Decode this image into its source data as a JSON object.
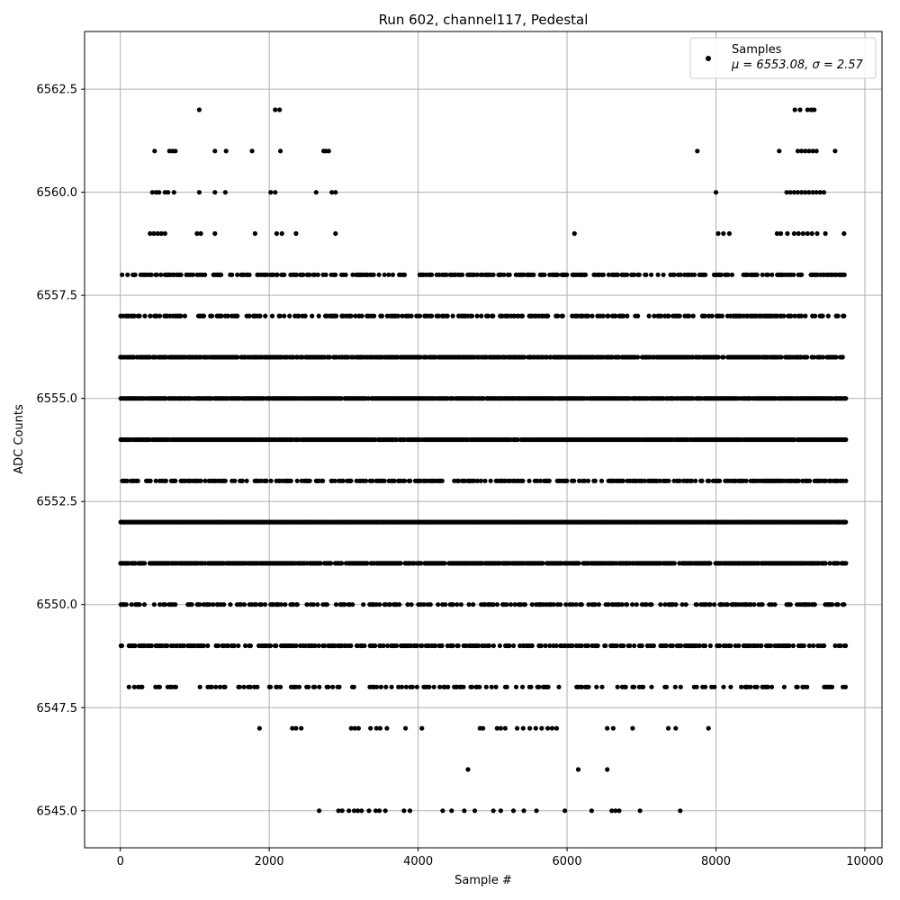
{
  "chart_data": {
    "type": "scatter",
    "title": "Run 602, channel117, Pedestal",
    "xlabel": "Sample #",
    "ylabel": "ADC Counts",
    "xlim": [
      -480,
      10230
    ],
    "ylim": [
      6544.1,
      6563.9
    ],
    "xticks": [
      0,
      2000,
      4000,
      6000,
      8000,
      10000
    ],
    "xtick_labels": [
      "0",
      "2000",
      "4000",
      "6000",
      "8000",
      "10000"
    ],
    "yticks": [
      6545.0,
      6547.5,
      6550.0,
      6552.5,
      6555.0,
      6557.5,
      6560.0,
      6562.5
    ],
    "ytick_labels": [
      "6545.0",
      "6547.5",
      "6550.0",
      "6552.5",
      "6555.0",
      "6557.5",
      "6560.0",
      "6562.5"
    ],
    "grid": true,
    "legend": {
      "placement": "top-right",
      "label": "Samples",
      "stats": "μ = 6553.08, σ = 2.57"
    },
    "marker_color": "#000000",
    "x_range": [
      0,
      9740
    ],
    "series": [
      {
        "name": "Samples",
        "levels": [
          {
            "y": 6562,
            "x": [
              1060,
              2080,
              2140,
              9060,
              9130,
              9230,
              9280,
              9320
            ]
          },
          {
            "y": 6561,
            "x": [
              460,
              660,
              700,
              740,
              1270,
              1420,
              1770,
              2150,
              2730,
              2760,
              2800,
              7750,
              8850,
              9100,
              9150,
              9200,
              9250,
              9300,
              9350,
              9600
            ]
          },
          {
            "y": 6560,
            "x": [
              430,
              480,
              520,
              600,
              640,
              720,
              1060,
              1270,
              1410,
              2630,
              2020,
              2080,
              2840,
              2890,
              8000,
              8950,
              9000,
              9050,
              9100,
              9150,
              9200,
              9250,
              9300,
              9350,
              9400,
              9450
            ]
          },
          {
            "y": 6559,
            "x": [
              400,
              450,
              500,
              550,
              600,
              1030,
              1080,
              1270,
              1810,
              2100,
              2170,
              2360,
              2890,
              6100,
              8030,
              8100,
              8180,
              8820,
              8870,
              8960,
              9050,
              9110,
              9170,
              9230,
              9290,
              9360,
              9470,
              9720
            ]
          },
          {
            "y": 6547,
            "x": [
              1870,
              2310,
              2360,
              2430,
              3100,
              3150,
              3200,
              3360,
              3440,
              3490,
              3580,
              3830,
              4050,
              4830,
              4870,
              5060,
              5110,
              5170,
              5330,
              5410,
              5500,
              5580,
              5660,
              5740,
              5800,
              5860,
              6540,
              6620,
              6880,
              7360,
              7460,
              7900
            ]
          },
          {
            "y": 6546,
            "x": [
              4670,
              6150,
              6540
            ]
          },
          {
            "y": 6545,
            "x": [
              2670,
              2930,
              2980,
              3070,
              3140,
              3190,
              3240,
              3340,
              3430,
              3480,
              3560,
              3810,
              3890,
              4330,
              4450,
              4620,
              4760,
              5010,
              5110,
              5280,
              5420,
              5590,
              5970,
              6330,
              6600,
              6650,
              6700,
              6980,
              7520
            ]
          }
        ],
        "dense_rows": [
          {
            "y": 6558,
            "density": 0.5
          },
          {
            "y": 6557,
            "density": 0.45
          },
          {
            "y": 6556,
            "density": 0.85
          },
          {
            "y": 6555,
            "density": 0.95
          },
          {
            "y": 6554,
            "density": 0.95
          },
          {
            "y": 6553,
            "density": 0.55
          },
          {
            "y": 6552,
            "density": 1.0
          },
          {
            "y": 6551,
            "density": 0.85
          },
          {
            "y": 6550,
            "density": 0.45
          },
          {
            "y": 6549,
            "density": 0.55
          },
          {
            "y": 6548,
            "density": 0.3
          }
        ]
      }
    ]
  }
}
